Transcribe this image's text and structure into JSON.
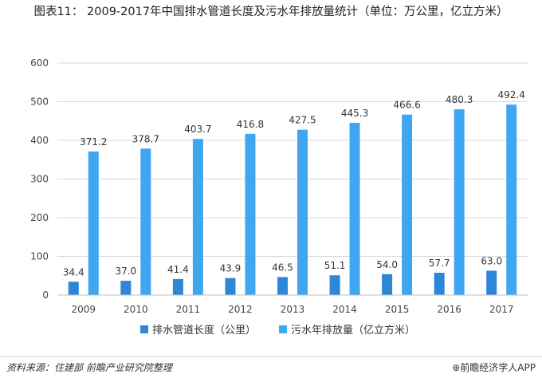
{
  "title": "图表11： 2009-2017年中国排水管道长度及污水年排放量统计（单位：万公里，亿立方米）",
  "source": "资料来源：住建部 前瞻产业研究院整理",
  "brand": "⊕前瞻经济学人APP",
  "colors": {
    "series1": "#2e86d9",
    "series2": "#3fa6f2",
    "grid": "#d9d9d9",
    "axis": "#bfbfbf"
  },
  "chart_data": {
    "type": "bar",
    "categories": [
      "2009",
      "2010",
      "2011",
      "2012",
      "2013",
      "2014",
      "2015",
      "2016",
      "2017"
    ],
    "series": [
      {
        "name": "排水管道长度（公里）",
        "values": [
          34.4,
          37.0,
          41.4,
          43.9,
          46.5,
          51.1,
          54.0,
          57.7,
          63.0
        ],
        "labels": [
          "34.4",
          "37.0",
          "41.4",
          "43.9",
          "46.5",
          "51.1",
          "54.0",
          "57.7",
          "63.0"
        ]
      },
      {
        "name": "污水年排放量（亿立方米）",
        "values": [
          371.2,
          378.7,
          403.7,
          416.8,
          427.5,
          445.3,
          466.6,
          480.3,
          492.4
        ],
        "labels": [
          "371.2",
          "378.7",
          "403.7",
          "416.8",
          "427.5",
          "445.3",
          "466.6",
          "480.3",
          "492.4"
        ]
      }
    ],
    "ylim": [
      0,
      600
    ],
    "yticks": [
      "0",
      "100",
      "200",
      "300",
      "400",
      "500",
      "600"
    ],
    "grid": true,
    "legend_position": "bottom"
  }
}
